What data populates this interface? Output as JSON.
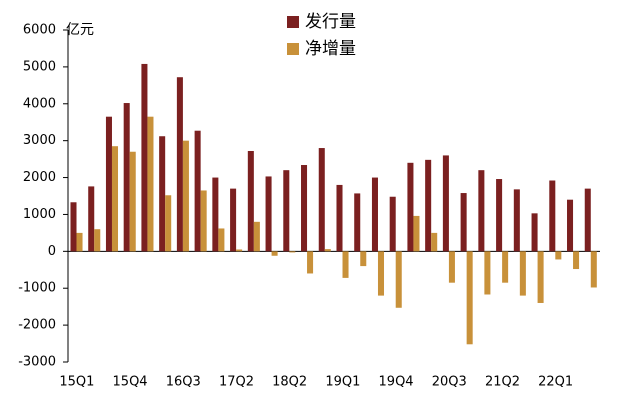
{
  "chart_data": {
    "type": "bar",
    "y_unit": "亿元",
    "categories": [
      "15Q1",
      null,
      null,
      "15Q4",
      null,
      null,
      "16Q3",
      null,
      null,
      "17Q2",
      null,
      null,
      "18Q2",
      null,
      null,
      "19Q1",
      null,
      null,
      "19Q4",
      null,
      null,
      "20Q3",
      null,
      null,
      "21Q2",
      null,
      null,
      "22Q1",
      null,
      null
    ],
    "series": [
      {
        "name": "发行量",
        "color": "#7b2020",
        "values": [
          1330,
          1760,
          3650,
          4020,
          5080,
          3120,
          4720,
          3270,
          2000,
          1700,
          2720,
          2030,
          2200,
          2340,
          2800,
          1800,
          1570,
          2000,
          1480,
          2400,
          2480,
          2600,
          1580,
          2200,
          1960,
          1680,
          1030,
          1920,
          1400,
          1700
        ]
      },
      {
        "name": "净增量",
        "color": "#c8913a",
        "values": [
          500,
          600,
          2850,
          2700,
          3650,
          1520,
          3000,
          1650,
          620,
          50,
          800,
          -120,
          -30,
          -600,
          60,
          -720,
          -400,
          -1200,
          -1530,
          960,
          500,
          -850,
          -2520,
          -1170,
          -850,
          -1200,
          -1400,
          -220,
          -480,
          -980
        ]
      }
    ],
    "ylim": [
      -3000,
      6000
    ],
    "yticks": [
      -3000,
      -2000,
      -1000,
      0,
      1000,
      2000,
      3000,
      4000,
      5000,
      6000
    ]
  }
}
